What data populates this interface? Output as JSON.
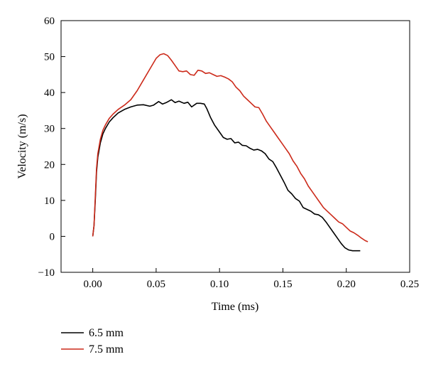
{
  "chart_data": {
    "type": "line",
    "title": "",
    "xlabel": "Time (ms)",
    "ylabel": "Velocity (m/s)",
    "xlim": [
      -0.025,
      0.25
    ],
    "ylim": [
      -10,
      60
    ],
    "xticks": [
      0.0,
      0.05,
      0.1,
      0.15,
      0.2,
      0.25
    ],
    "xtick_labels": [
      "0.00",
      "0.05",
      "0.10",
      "0.15",
      "0.20",
      "0.25"
    ],
    "yticks": [
      -10,
      0,
      10,
      20,
      30,
      40,
      50,
      60
    ],
    "ytick_labels": [
      "−10",
      "0",
      "10",
      "20",
      "30",
      "40",
      "50",
      "60"
    ],
    "grid": false,
    "legend_position": "bottom-left, below the plot",
    "series": [
      {
        "name": "6.5 mm",
        "color": "#000000",
        "x": [
          0.0,
          0.001,
          0.002,
          0.003,
          0.004,
          0.006,
          0.008,
          0.01,
          0.013,
          0.016,
          0.02,
          0.025,
          0.03,
          0.035,
          0.04,
          0.045,
          0.048,
          0.052,
          0.055,
          0.058,
          0.062,
          0.065,
          0.068,
          0.072,
          0.075,
          0.078,
          0.082,
          0.085,
          0.088,
          0.09,
          0.093,
          0.096,
          0.1,
          0.103,
          0.106,
          0.109,
          0.112,
          0.115,
          0.118,
          0.121,
          0.124,
          0.127,
          0.13,
          0.133,
          0.136,
          0.139,
          0.142,
          0.145,
          0.148,
          0.151,
          0.154,
          0.157,
          0.16,
          0.163,
          0.166,
          0.169,
          0.172,
          0.175,
          0.178,
          0.181,
          0.184,
          0.187,
          0.19,
          0.193,
          0.196,
          0.199,
          0.202,
          0.205,
          0.208,
          0.211
        ],
        "y": [
          0,
          3,
          10,
          18,
          22,
          26,
          28.5,
          30,
          31.8,
          33,
          34.3,
          35.3,
          36,
          36.5,
          36.6,
          36.2,
          36.5,
          37.5,
          36.8,
          37.2,
          38,
          37.2,
          37.6,
          37,
          37.3,
          36,
          37,
          37,
          36.8,
          35.5,
          33,
          31,
          29,
          27.5,
          27,
          27.2,
          26,
          26.2,
          25.3,
          25.2,
          24.5,
          24,
          24.2,
          23.8,
          23,
          21.5,
          20.8,
          19,
          17,
          15,
          12.8,
          11.8,
          10.5,
          9.8,
          8,
          7.5,
          7,
          6.2,
          6,
          5.3,
          4,
          2.5,
          1,
          -0.5,
          -2,
          -3.2,
          -3.8,
          -4,
          -4,
          -4
        ]
      },
      {
        "name": "7.5 mm",
        "color": "#cc2a1a",
        "x": [
          0.0,
          0.001,
          0.002,
          0.003,
          0.004,
          0.006,
          0.008,
          0.01,
          0.013,
          0.016,
          0.02,
          0.025,
          0.03,
          0.035,
          0.04,
          0.045,
          0.05,
          0.053,
          0.056,
          0.059,
          0.062,
          0.065,
          0.068,
          0.071,
          0.074,
          0.077,
          0.08,
          0.083,
          0.086,
          0.089,
          0.092,
          0.095,
          0.098,
          0.101,
          0.104,
          0.107,
          0.11,
          0.113,
          0.116,
          0.119,
          0.122,
          0.125,
          0.128,
          0.131,
          0.134,
          0.137,
          0.14,
          0.143,
          0.146,
          0.149,
          0.152,
          0.155,
          0.158,
          0.161,
          0.164,
          0.167,
          0.17,
          0.173,
          0.176,
          0.179,
          0.182,
          0.185,
          0.188,
          0.191,
          0.194,
          0.197,
          0.2,
          0.203,
          0.206,
          0.209,
          0.212,
          0.215,
          0.217
        ],
        "y": [
          0,
          3,
          11,
          19,
          23,
          27,
          29.5,
          31,
          32.8,
          34,
          35.3,
          36.5,
          38,
          40.5,
          43.5,
          46.5,
          49.5,
          50.5,
          50.8,
          50.3,
          49,
          47.5,
          46,
          45.8,
          46,
          45,
          44.8,
          46.2,
          46,
          45.3,
          45.5,
          45,
          44.5,
          44.7,
          44.3,
          43.8,
          43,
          41.5,
          40.5,
          39,
          38,
          37,
          36,
          35.8,
          34,
          32,
          30.5,
          29,
          27.5,
          26,
          24.5,
          23,
          21,
          19.5,
          17.5,
          16,
          14,
          12.5,
          11,
          9.5,
          8,
          7,
          6,
          5,
          4,
          3.5,
          2.5,
          1.5,
          1,
          0.3,
          -0.5,
          -1.2,
          -1.5
        ]
      }
    ]
  }
}
